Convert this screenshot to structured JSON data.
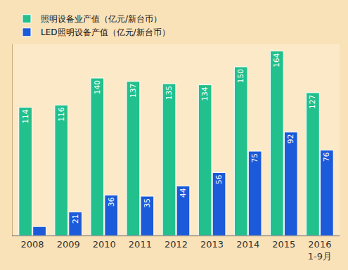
{
  "chart_data": {
    "type": "bar",
    "categories": [
      "2008",
      "2009",
      "2010",
      "2011",
      "2012",
      "2013",
      "2014",
      "2015",
      "2016\n1-9月"
    ],
    "series": [
      {
        "name": "照明设备业产值（亿元/新台币）",
        "color": "#22c08c",
        "values": [
          114,
          116,
          140,
          137,
          135,
          134,
          150,
          164,
          127
        ]
      },
      {
        "name": "LED照明设备产值（亿元/新台币）",
        "color": "#1b5ad8",
        "values": [
          8,
          21,
          36,
          35,
          44,
          56,
          75,
          92,
          76
        ],
        "value_labels": [
          null,
          "21",
          "36",
          "35",
          "44",
          "56",
          "75",
          "92",
          "76"
        ]
      }
    ],
    "ylim": [
      0,
      170
    ],
    "yticks": [],
    "data_labels": true,
    "tick_labels": "x",
    "grid": false,
    "legend": "top left"
  }
}
